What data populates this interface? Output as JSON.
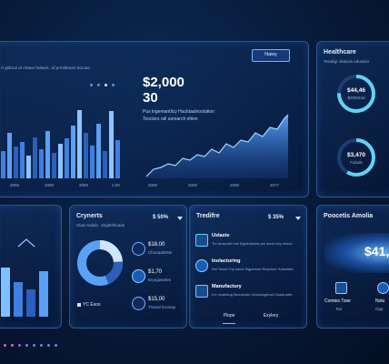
{
  "overview": {
    "subtitle": "rl gsbcal al chaes hdiaes, af pmstlones bocaie",
    "button_label": "Nawy",
    "headline_value": "$2,000",
    "headline_sub": "30",
    "desc_line1": "Pus lngemantlicy Hacktaalnoolation",
    "desc_line2": "Toockes rall asrearch eltion",
    "bar_x_labels": [
      "2000",
      "2000",
      "2000",
      "2,00"
    ],
    "area_x_labels": [
      "2000",
      "2000",
      "2000",
      "3077"
    ]
  },
  "healthcare": {
    "title": "Healthcare",
    "subtitle": "Tecaligr cbaices eduision",
    "ring1_value": "$44,46",
    "ring1_sub": "$2000rad",
    "ring2_value": "$3,470",
    "ring2_sub": "Fuluds"
  },
  "cryptos": {
    "title": "Crynerts",
    "badge": "$ 50%",
    "subtitle": "Cban tsdaln. Jingbtsfrcade",
    "pie_label": "YC Esos",
    "items": [
      {
        "value": "$18,00",
        "desc": "Chonadetlsts"
      },
      {
        "value": "$1,70",
        "desc": "Eryogasetes"
      },
      {
        "value": "$15,00",
        "desc": "Tinand lovosay"
      }
    ]
  },
  "trending": {
    "title": "Tredifre",
    "badge": "$ 35%",
    "items": [
      {
        "title": "Uslaste",
        "desc": "Tre amsonet mel Egrobrtsdes pul aord Ivey ensoe"
      },
      {
        "title": "Inolacturing",
        "desc": "Eal Tosnd Toy kaoct Sigpenote Repulsor Sutrutiste."
      },
      {
        "title": "Manufactury",
        "desc": "Lre sclarstug Ilocustraut Uboudagerad Osastuatre."
      }
    ],
    "tabs": [
      "Plope",
      "Exylery"
    ]
  },
  "process": {
    "title": "Poocetis Amolia",
    "value": "$41,5",
    "card1_title": "Comies Tose",
    "card1_sub": "Tan",
    "card2_title": "Nolu",
    "card2_sub": "Opp"
  },
  "colors": {
    "accent": "#4da3ff",
    "accent_light": "#8fd0ff",
    "cyan": "#5fd3f5",
    "background": "#071a38"
  }
}
